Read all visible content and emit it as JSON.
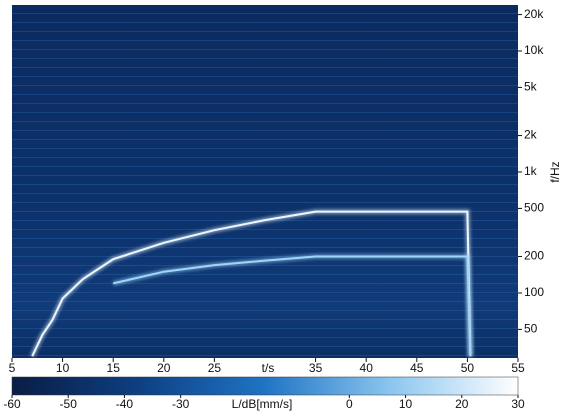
{
  "chart_data": {
    "type": "spectrogram",
    "x_label": "t/s",
    "y_label": "f/Hz",
    "colorbar_label": "L/dB[mm/s]",
    "xlim": [
      5,
      55
    ],
    "xticks": [
      5,
      10,
      15,
      20,
      25,
      35,
      40,
      45,
      50,
      55
    ],
    "ylim": [
      29,
      24000
    ],
    "yscale": "log",
    "yticks": [
      50,
      100,
      200,
      500,
      {
        "value": 1000,
        "label": "1k"
      },
      {
        "value": 2000,
        "label": "2k"
      },
      {
        "value": 5000,
        "label": "5k"
      },
      {
        "value": 10000,
        "label": "10k"
      },
      {
        "value": 20000,
        "label": "20k"
      }
    ],
    "clim": [
      -60,
      30
    ],
    "cticks": [
      -60,
      -50,
      -40,
      -30,
      0,
      10,
      20,
      30
    ],
    "colorscale": [
      "#0a1d45",
      "#0d3f82",
      "#1f74c4",
      "#8cc6f0",
      "#ffffff"
    ],
    "background": "#0c2a5c",
    "series": [
      {
        "color": "#eaf7ff",
        "x": [
          7,
          8,
          9,
          10,
          12,
          15,
          20,
          25,
          30,
          35,
          40,
          45,
          50,
          50.3
        ],
        "values": [
          30,
          45,
          60,
          90,
          130,
          190,
          260,
          330,
          400,
          470,
          470,
          470,
          470,
          30
        ]
      },
      {
        "color": "#9fd6f8",
        "x": [
          15,
          20,
          25,
          30,
          35,
          40,
          45,
          50,
          50.3
        ],
        "values": [
          120,
          150,
          170,
          185,
          200,
          200,
          200,
          200,
          30
        ]
      }
    ]
  }
}
